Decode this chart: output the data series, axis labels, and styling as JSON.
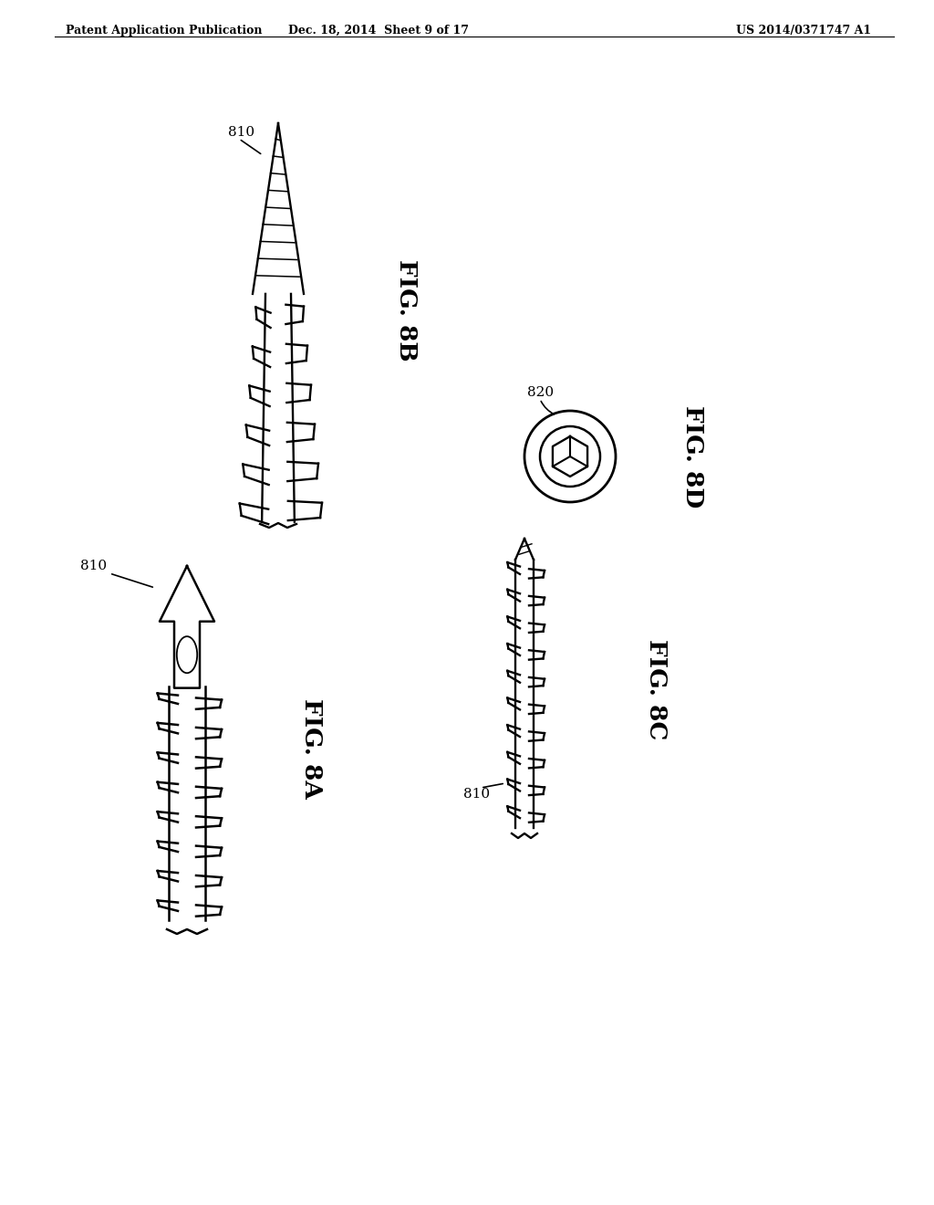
{
  "background_color": "#ffffff",
  "header_left": "Patent Application Publication",
  "header_center": "Dec. 18, 2014  Sheet 9 of 17",
  "header_right": "US 2014/0371747 A1",
  "fig8b_label": "FIG. 8B",
  "fig8d_label": "FIG. 8D",
  "fig8a_label": "FIG. 8A",
  "fig8c_label": "FIG. 8C",
  "line_color": "#000000",
  "lw": 1.8
}
